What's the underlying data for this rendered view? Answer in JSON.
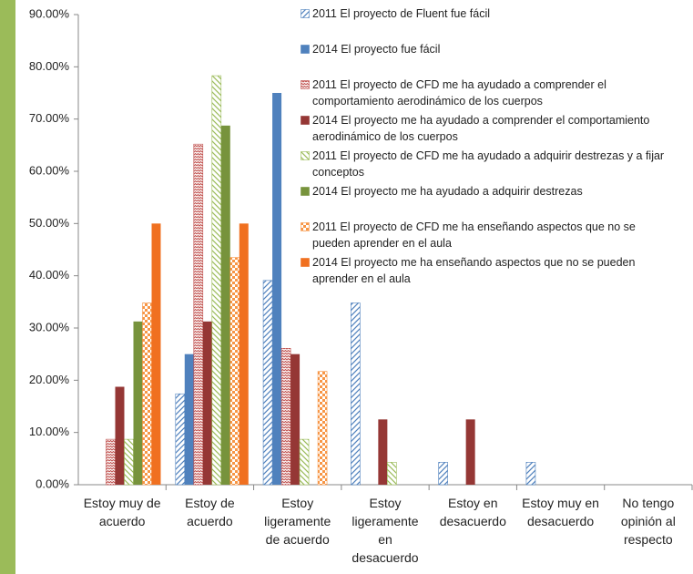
{
  "chart_data": {
    "type": "bar",
    "categories": [
      "Estoy muy de acuerdo",
      "Estoy de acuerdo",
      "Estoy ligeramente de acuerdo",
      "Estoy ligeramente en desacuerdo",
      "Estoy en desacuerdo",
      "Estoy muy en desacuerdo",
      "No tengo opinión al respecto"
    ],
    "series": [
      {
        "name": "2011 El proyecto de Fluent fue fácil",
        "color": "#4f81bd",
        "pattern": "diagonal",
        "values": [
          0,
          17.4,
          39.1,
          34.8,
          4.3,
          4.3,
          0
        ]
      },
      {
        "name": "2014 El proyecto fue fácil",
        "color": "#4f81bd",
        "pattern": "solid",
        "values": [
          0,
          25,
          75,
          0,
          0,
          0,
          0
        ]
      },
      {
        "name": "2011 El proyecto de CFD me ha ayudado a comprender el comportamiento aerodinámico de los cuerpos",
        "color": "#c0504d",
        "pattern": "zigzag",
        "values": [
          8.7,
          65.2,
          26.1,
          0,
          0,
          0,
          0
        ]
      },
      {
        "name": "2014 El proyecto me ha ayudado a comprender el comportamiento aerodinámico de los cuerpos",
        "color": "#953735",
        "pattern": "solid",
        "values": [
          18.75,
          31.25,
          25,
          12.5,
          12.5,
          0,
          0
        ]
      },
      {
        "name": "2011 El proyecto de CFD me ha ayudado a adquirir destrezas y a fijar conceptos",
        "color": "#9bbb59",
        "pattern": "diagonal-reverse",
        "values": [
          8.7,
          78.3,
          8.7,
          4.3,
          0,
          0,
          0
        ]
      },
      {
        "name": "2014 El proyecto me ha ayudado a adquirir destrezas",
        "color": "#77933c",
        "pattern": "solid",
        "values": [
          31.25,
          68.75,
          0,
          0,
          0,
          0,
          0
        ]
      },
      {
        "name": "2011 El proyecto de CFD me ha enseñando aspectos que no se pueden aprender en el aula",
        "color": "#f79646",
        "pattern": "checker",
        "values": [
          34.8,
          43.5,
          21.7,
          0,
          0,
          0,
          0
        ]
      },
      {
        "name": "2014 El proyecto me ha enseñando aspectos que no se pueden aprender en el aula",
        "color": "#f07020",
        "pattern": "solid",
        "values": [
          50,
          50,
          0,
          0,
          0,
          0,
          0
        ]
      }
    ],
    "ylim": [
      0,
      90
    ],
    "yticks": [
      {
        "value": 0,
        "label": "0.00%"
      },
      {
        "value": 10,
        "label": "10.00%"
      },
      {
        "value": 20,
        "label": "20.00%"
      },
      {
        "value": 30,
        "label": "30.00%"
      },
      {
        "value": 40,
        "label": "40.00%"
      },
      {
        "value": 50,
        "label": "50.00%"
      },
      {
        "value": 60,
        "label": "60.00%"
      },
      {
        "value": 70,
        "label": "70.00%"
      },
      {
        "value": 80,
        "label": "80.00%"
      },
      {
        "value": 90,
        "label": "90.00%"
      }
    ],
    "grid": false,
    "legend": "top-right"
  }
}
